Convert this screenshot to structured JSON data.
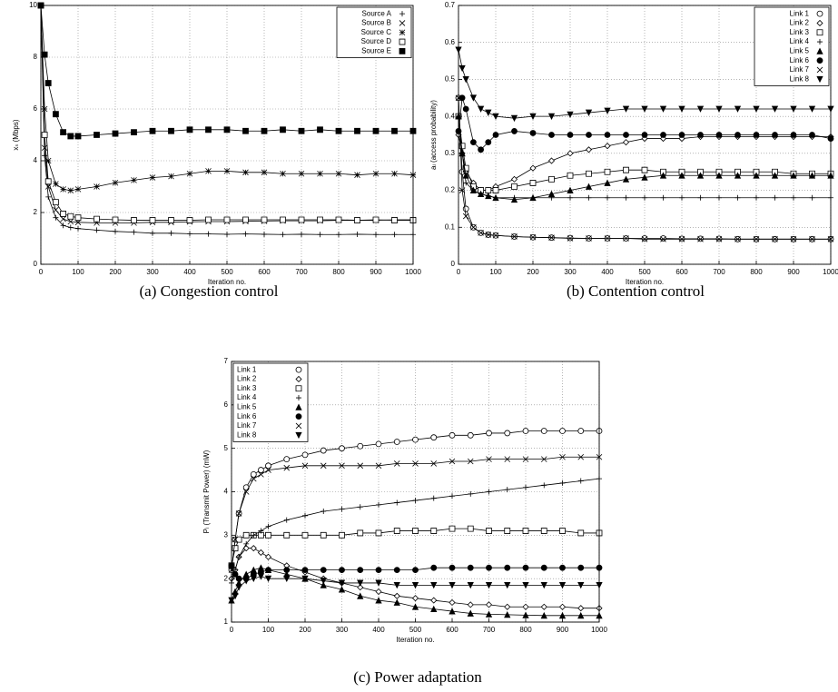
{
  "chart_data": [
    {
      "type": "line",
      "caption": "(a) Congestion control",
      "xlabel": "Iteration no.",
      "ylabel": "xₛ (Mbps)",
      "x": [
        0,
        10,
        20,
        40,
        60,
        80,
        100,
        150,
        200,
        250,
        300,
        350,
        400,
        450,
        500,
        550,
        600,
        650,
        700,
        750,
        800,
        850,
        900,
        950,
        1000
      ],
      "xlim": [
        0,
        1000
      ],
      "xticks": [
        0,
        100,
        200,
        300,
        400,
        500,
        600,
        700,
        800,
        900,
        1000
      ],
      "ylim": [
        0,
        10
      ],
      "yticks": [
        0,
        2,
        4,
        6,
        8,
        10
      ],
      "grid": true,
      "legend": "upper right",
      "series": [
        {
          "name": "Source A",
          "color": "#000000",
          "marker": "plus",
          "values": [
            10,
            4.2,
            2.6,
            1.8,
            1.5,
            1.42,
            1.38,
            1.32,
            1.27,
            1.24,
            1.2,
            1.2,
            1.18,
            1.17,
            1.16,
            1.17,
            1.16,
            1.15,
            1.16,
            1.15,
            1.15,
            1.16,
            1.15,
            1.15,
            1.15
          ]
        },
        {
          "name": "Source B",
          "color": "#000000",
          "marker": "cross",
          "values": [
            10,
            4.5,
            3.0,
            2.1,
            1.75,
            1.65,
            1.62,
            1.6,
            1.6,
            1.6,
            1.62,
            1.62,
            1.64,
            1.65,
            1.65,
            1.66,
            1.67,
            1.68,
            1.68,
            1.68,
            1.7,
            1.7,
            1.7,
            1.72,
            1.72
          ]
        },
        {
          "name": "Source C",
          "color": "#000000",
          "marker": "star",
          "values": [
            10,
            6,
            4.0,
            3.1,
            2.9,
            2.85,
            2.9,
            3.0,
            3.15,
            3.25,
            3.35,
            3.4,
            3.5,
            3.6,
            3.6,
            3.55,
            3.55,
            3.5,
            3.5,
            3.5,
            3.5,
            3.45,
            3.5,
            3.5,
            3.45
          ]
        },
        {
          "name": "Source D",
          "color": "#000000",
          "marker": "square",
          "values": [
            10,
            5,
            3.2,
            2.4,
            1.95,
            1.85,
            1.8,
            1.75,
            1.72,
            1.7,
            1.7,
            1.7,
            1.7,
            1.72,
            1.72,
            1.72,
            1.72,
            1.72,
            1.72,
            1.72,
            1.72,
            1.7,
            1.72,
            1.7,
            1.7
          ]
        },
        {
          "name": "Source E",
          "color": "#000000",
          "marker": "filledsquare",
          "values": [
            10,
            8.1,
            7,
            5.8,
            5.1,
            4.95,
            4.95,
            5,
            5.05,
            5.1,
            5.15,
            5.15,
            5.2,
            5.2,
            5.2,
            5.15,
            5.15,
            5.2,
            5.15,
            5.2,
            5.15,
            5.15,
            5.15,
            5.15,
            5.15
          ]
        }
      ]
    },
    {
      "type": "line",
      "caption": "(b) Contention control",
      "xlabel": "Iteration no.",
      "ylabel": "aₗ (access probability)",
      "x": [
        0,
        10,
        20,
        40,
        60,
        80,
        100,
        150,
        200,
        250,
        300,
        350,
        400,
        450,
        500,
        550,
        600,
        650,
        700,
        750,
        800,
        850,
        900,
        950,
        1000
      ],
      "xlim": [
        0,
        1000
      ],
      "xticks": [
        0,
        100,
        200,
        300,
        400,
        500,
        600,
        700,
        800,
        900,
        1000
      ],
      "ylim": [
        0,
        0.7
      ],
      "yticks": [
        0,
        0.1,
        0.2,
        0.3,
        0.4,
        0.5,
        0.6,
        0.7
      ],
      "grid": true,
      "legend": "upper right",
      "series": [
        {
          "name": "Link 1",
          "color": "#000000",
          "marker": "circle",
          "values": [
            0.45,
            0.25,
            0.15,
            0.1,
            0.085,
            0.08,
            0.078,
            0.075,
            0.073,
            0.072,
            0.071,
            0.07,
            0.07,
            0.07,
            0.07,
            0.07,
            0.069,
            0.069,
            0.069,
            0.068,
            0.068,
            0.068,
            0.068,
            0.068,
            0.068
          ]
        },
        {
          "name": "Link 2",
          "color": "#000000",
          "marker": "diamond",
          "values": [
            0.35,
            0.3,
            0.25,
            0.22,
            0.2,
            0.2,
            0.21,
            0.23,
            0.26,
            0.28,
            0.3,
            0.31,
            0.32,
            0.33,
            0.34,
            0.34,
            0.34,
            0.345,
            0.345,
            0.345,
            0.345,
            0.345,
            0.345,
            0.345,
            0.345
          ]
        },
        {
          "name": "Link 3",
          "color": "#000000",
          "marker": "square",
          "values": [
            0.4,
            0.32,
            0.26,
            0.21,
            0.2,
            0.2,
            0.2,
            0.21,
            0.22,
            0.23,
            0.24,
            0.245,
            0.25,
            0.255,
            0.255,
            0.25,
            0.25,
            0.25,
            0.25,
            0.25,
            0.25,
            0.25,
            0.245,
            0.245,
            0.245
          ]
        },
        {
          "name": "Link 4",
          "color": "#000000",
          "marker": "plus",
          "values": [
            0.4,
            0.3,
            0.22,
            0.2,
            0.19,
            0.185,
            0.18,
            0.18,
            0.18,
            0.18,
            0.18,
            0.18,
            0.18,
            0.18,
            0.18,
            0.18,
            0.18,
            0.18,
            0.18,
            0.18,
            0.18,
            0.18,
            0.18,
            0.18,
            0.18
          ]
        },
        {
          "name": "Link 5",
          "color": "#000000",
          "marker": "triangle",
          "values": [
            0.4,
            0.3,
            0.24,
            0.2,
            0.19,
            0.185,
            0.18,
            0.175,
            0.18,
            0.19,
            0.2,
            0.21,
            0.22,
            0.23,
            0.235,
            0.24,
            0.24,
            0.24,
            0.24,
            0.24,
            0.24,
            0.24,
            0.24,
            0.24,
            0.24
          ]
        },
        {
          "name": "Link 6",
          "color": "#000000",
          "marker": "filledcircle",
          "values": [
            0.36,
            0.45,
            0.42,
            0.33,
            0.31,
            0.33,
            0.35,
            0.36,
            0.355,
            0.35,
            0.35,
            0.35,
            0.35,
            0.35,
            0.35,
            0.35,
            0.35,
            0.35,
            0.35,
            0.35,
            0.35,
            0.35,
            0.35,
            0.35,
            0.34
          ]
        },
        {
          "name": "Link 7",
          "color": "#000000",
          "marker": "cross",
          "values": [
            0.45,
            0.2,
            0.13,
            0.1,
            0.085,
            0.08,
            0.078,
            0.075,
            0.073,
            0.072,
            0.07,
            0.07,
            0.07,
            0.07,
            0.068,
            0.068,
            0.068,
            0.068,
            0.068,
            0.068,
            0.068,
            0.068,
            0.068,
            0.068,
            0.068
          ]
        },
        {
          "name": "Link 8",
          "color": "#000000",
          "marker": "invtriangle",
          "values": [
            0.58,
            0.53,
            0.5,
            0.45,
            0.42,
            0.41,
            0.4,
            0.395,
            0.4,
            0.4,
            0.405,
            0.41,
            0.415,
            0.42,
            0.42,
            0.42,
            0.42,
            0.42,
            0.42,
            0.42,
            0.42,
            0.42,
            0.42,
            0.42,
            0.42
          ]
        }
      ]
    },
    {
      "type": "line",
      "caption": "(c) Power adaptation",
      "xlabel": "Iteration no.",
      "ylabel": "Pₗ (Transmit Power) (mW)",
      "x": [
        0,
        10,
        20,
        40,
        60,
        80,
        100,
        150,
        200,
        250,
        300,
        350,
        400,
        450,
        500,
        550,
        600,
        650,
        700,
        750,
        800,
        850,
        900,
        950,
        1000
      ],
      "xlim": [
        0,
        1000
      ],
      "xticks": [
        0,
        100,
        200,
        300,
        400,
        500,
        600,
        700,
        800,
        900,
        1000
      ],
      "ylim": [
        1,
        7
      ],
      "yticks": [
        1,
        2,
        3,
        4,
        5,
        6,
        7
      ],
      "grid": true,
      "legend": "upper left",
      "series": [
        {
          "name": "Link 1",
          "color": "#000000",
          "marker": "circle",
          "values": [
            2.2,
            2.9,
            3.5,
            4.1,
            4.4,
            4.5,
            4.6,
            4.75,
            4.85,
            4.95,
            5.0,
            5.05,
            5.1,
            5.15,
            5.2,
            5.25,
            5.3,
            5.3,
            5.35,
            5.35,
            5.4,
            5.4,
            5.4,
            5.4,
            5.4
          ]
        },
        {
          "name": "Link 2",
          "color": "#000000",
          "marker": "diamond",
          "values": [
            2.0,
            2.2,
            2.5,
            2.7,
            2.7,
            2.6,
            2.5,
            2.3,
            2.15,
            2.0,
            1.9,
            1.8,
            1.7,
            1.6,
            1.55,
            1.5,
            1.45,
            1.4,
            1.4,
            1.35,
            1.35,
            1.35,
            1.35,
            1.32,
            1.32
          ]
        },
        {
          "name": "Link 3",
          "color": "#000000",
          "marker": "square",
          "values": [
            2.3,
            2.7,
            2.9,
            3.0,
            3.0,
            3.0,
            3.0,
            3.0,
            3.0,
            3.0,
            3.0,
            3.05,
            3.05,
            3.1,
            3.1,
            3.1,
            3.15,
            3.15,
            3.1,
            3.1,
            3.1,
            3.1,
            3.1,
            3.05,
            3.05
          ]
        },
        {
          "name": "Link 4",
          "color": "#000000",
          "marker": "plus",
          "values": [
            1.9,
            2.2,
            2.5,
            2.8,
            3.0,
            3.1,
            3.2,
            3.35,
            3.45,
            3.55,
            3.6,
            3.65,
            3.7,
            3.75,
            3.8,
            3.85,
            3.9,
            3.95,
            4.0,
            4.05,
            4.1,
            4.15,
            4.2,
            4.25,
            4.3
          ]
        },
        {
          "name": "Link 5",
          "color": "#000000",
          "marker": "triangle",
          "values": [
            1.5,
            1.7,
            1.9,
            2.1,
            2.2,
            2.25,
            2.2,
            2.1,
            2.0,
            1.85,
            1.75,
            1.6,
            1.5,
            1.45,
            1.35,
            1.3,
            1.25,
            1.2,
            1.18,
            1.17,
            1.16,
            1.15,
            1.15,
            1.15,
            1.15
          ]
        },
        {
          "name": "Link 6",
          "color": "#000000",
          "marker": "filledcircle",
          "values": [
            2.3,
            2.1,
            2.0,
            2.0,
            2.1,
            2.15,
            2.2,
            2.2,
            2.2,
            2.2,
            2.2,
            2.2,
            2.2,
            2.2,
            2.2,
            2.25,
            2.25,
            2.25,
            2.25,
            2.25,
            2.25,
            2.25,
            2.25,
            2.25,
            2.25
          ]
        },
        {
          "name": "Link 7",
          "color": "#000000",
          "marker": "cross",
          "values": [
            2.2,
            2.9,
            3.5,
            4.0,
            4.3,
            4.4,
            4.5,
            4.55,
            4.6,
            4.6,
            4.6,
            4.6,
            4.6,
            4.65,
            4.65,
            4.65,
            4.7,
            4.7,
            4.75,
            4.75,
            4.75,
            4.75,
            4.8,
            4.8,
            4.8
          ]
        },
        {
          "name": "Link 8",
          "color": "#000000",
          "marker": "invtriangle",
          "values": [
            1.5,
            1.6,
            1.8,
            1.95,
            2.0,
            2.05,
            2.0,
            2.0,
            2.0,
            1.95,
            1.9,
            1.9,
            1.9,
            1.85,
            1.85,
            1.85,
            1.85,
            1.85,
            1.85,
            1.85,
            1.85,
            1.85,
            1.85,
            1.85,
            1.85
          ]
        }
      ]
    }
  ]
}
